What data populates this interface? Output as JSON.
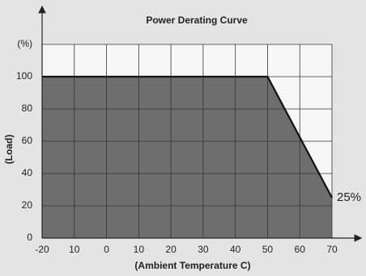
{
  "chart_data": {
    "type": "area",
    "title": "Power Derating Curve",
    "x_label": "(Ambient Temperature  C)",
    "y_label": "(Load)",
    "x": [
      -20,
      50,
      70
    ],
    "values": [
      100,
      100,
      25
    ],
    "color": "#6e6e6e",
    "annotation": "25%",
    "xlim": [
      -20,
      70
    ],
    "xticks": [
      -20,
      {
        "value": -10,
        "label": "10"
      },
      0,
      10,
      20,
      30,
      40,
      50,
      60,
      70
    ],
    "ylim": [
      0,
      120
    ],
    "yticks": [
      0,
      20,
      40,
      60,
      80,
      100,
      {
        "value": 120,
        "label": "(%)"
      }
    ],
    "grid": true
  }
}
